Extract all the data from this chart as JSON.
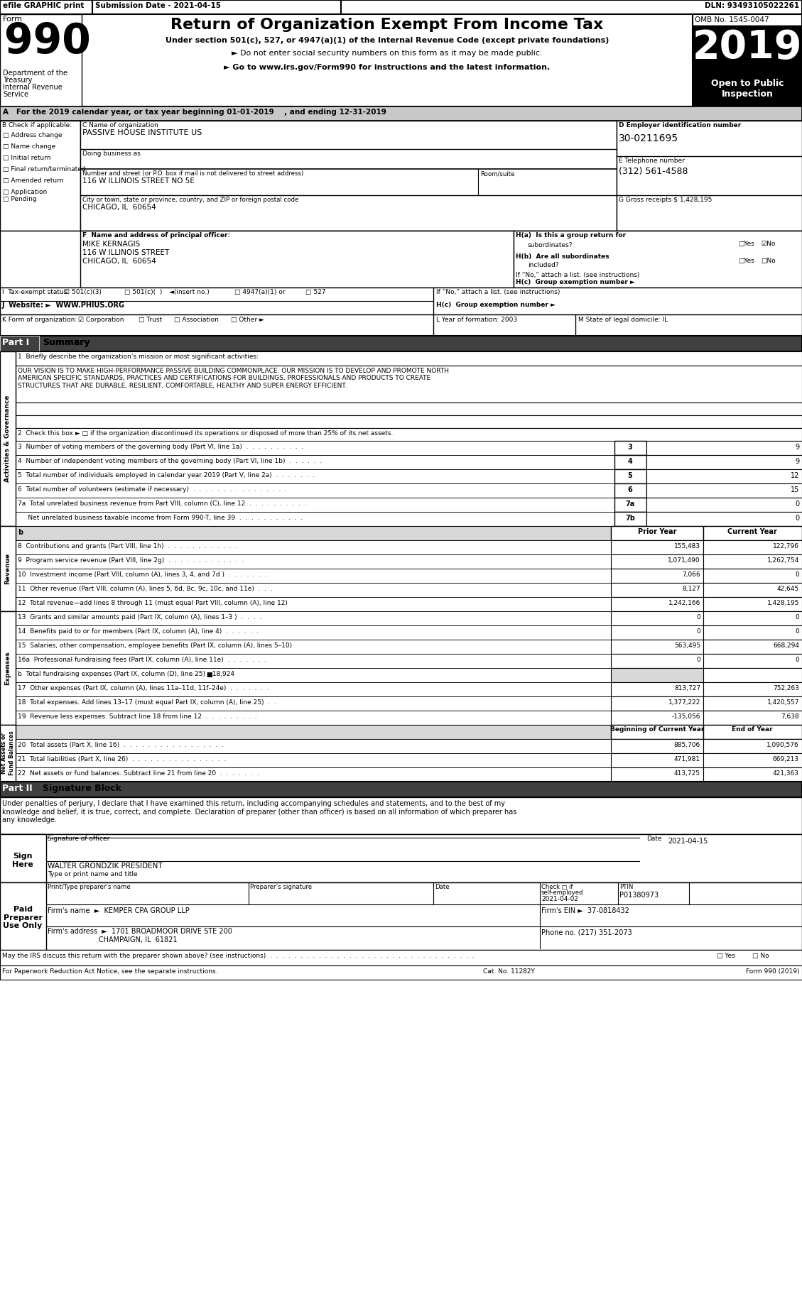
{
  "title_main": "Return of Organization Exempt From Income Tax",
  "subtitle1": "Under section 501(c), 527, or 4947(a)(1) of the Internal Revenue Code (except private foundations)",
  "subtitle2": "► Do not enter social security numbers on this form as it may be made public.",
  "subtitle3": "► Go to www.irs.gov/Form990 for instructions and the latest information.",
  "form_number": "990",
  "form_label": "Form",
  "year": "2019",
  "omb": "OMB No. 1545-0047",
  "open_to_public": "Open to Public\nInspection",
  "dept1": "Department of the",
  "dept2": "Treasury",
  "dept3": "Internal Revenue",
  "dept4": "Service",
  "efile_text": "efile GRAPHIC print",
  "submission": "Submission Date - 2021-04-15",
  "dln": "DLN: 93493105022261",
  "line_a": "A   For the 2019 calendar year, or tax year beginning 01-01-2019    , and ending 12-31-2019",
  "label_b": "B Check if applicable:",
  "label_c": "C Name of organization",
  "org_name": "PASSIVE HOUSE INSTITUTE US",
  "doing_business": "Doing business as",
  "label_street": "Number and street (or P.O. box if mail is not delivered to street address)",
  "label_room": "Room/suite",
  "street_addr": "116 W ILLINOIS STREET NO 5E",
  "label_city": "City or town, state or province, country, and ZIP or foreign postal code",
  "city_addr": "CHICAGO, IL  60654",
  "label_d": "D Employer identification number",
  "ein": "30-0211695",
  "label_e": "E Telephone number",
  "phone": "(312) 561-4588",
  "label_g": "G Gross receipts $ 1,428,195",
  "label_f": "F  Name and address of principal officer:",
  "officer_name": "MIKE KERNAGIS",
  "officer_street": "116 W ILLINOIS STREET",
  "officer_city": "CHICAGO, IL  60654",
  "if_no": "If “No,” attach a list. (see instructions)",
  "col_prior": "Prior Year",
  "col_current": "Current Year",
  "col_begin": "Beginning of Current Year",
  "col_end": "End of Year",
  "mission_text": "OUR VISION IS TO MAKE HIGH-PERFORMANCE PASSIVE BUILDING COMMONPLACE. OUR MISSION IS TO DEVELOP AND PROMOTE NORTH\nAMERICAN SPECIFIC STANDARDS, PRACTICES AND CERTIFICATIONS FOR BUILDINGS, PROFESSIONALS AND PRODUCTS TO CREATE\nSTRUCTURES THAT ARE DURABLE, RESILIENT, COMFORTABLE, HEALTHY AND SUPER ENERGY EFFICIENT.",
  "sig_text": "Under penalties of perjury, I declare that I have examined this return, including accompanying schedules and statements, and to the best of my\nknowledge and belief, it is true, correct, and complete. Declaration of preparer (other than officer) is based on all information of which preparer has\nany knowledge.",
  "sig_date": "2021-04-15",
  "sig_name": "WALTER GRONDZIK PRESIDENT",
  "preparer_ptin": "P01380973",
  "preparer_date": "2021-04-02",
  "firm_name": "KEMPER CPA GROUP LLP",
  "firm_ein": "37-0818432",
  "firm_address": "1701 BROADMOOR DRIVE STE 200",
  "firm_city": "CHAMPAIGN, IL  61821",
  "phone_no": "(217) 351-2073",
  "sidebar_activities": "Activities & Governance",
  "sidebar_revenue": "Revenue",
  "sidebar_expenses": "Expenses",
  "sidebar_net_assets": "Net Assets or\nFund Balances"
}
